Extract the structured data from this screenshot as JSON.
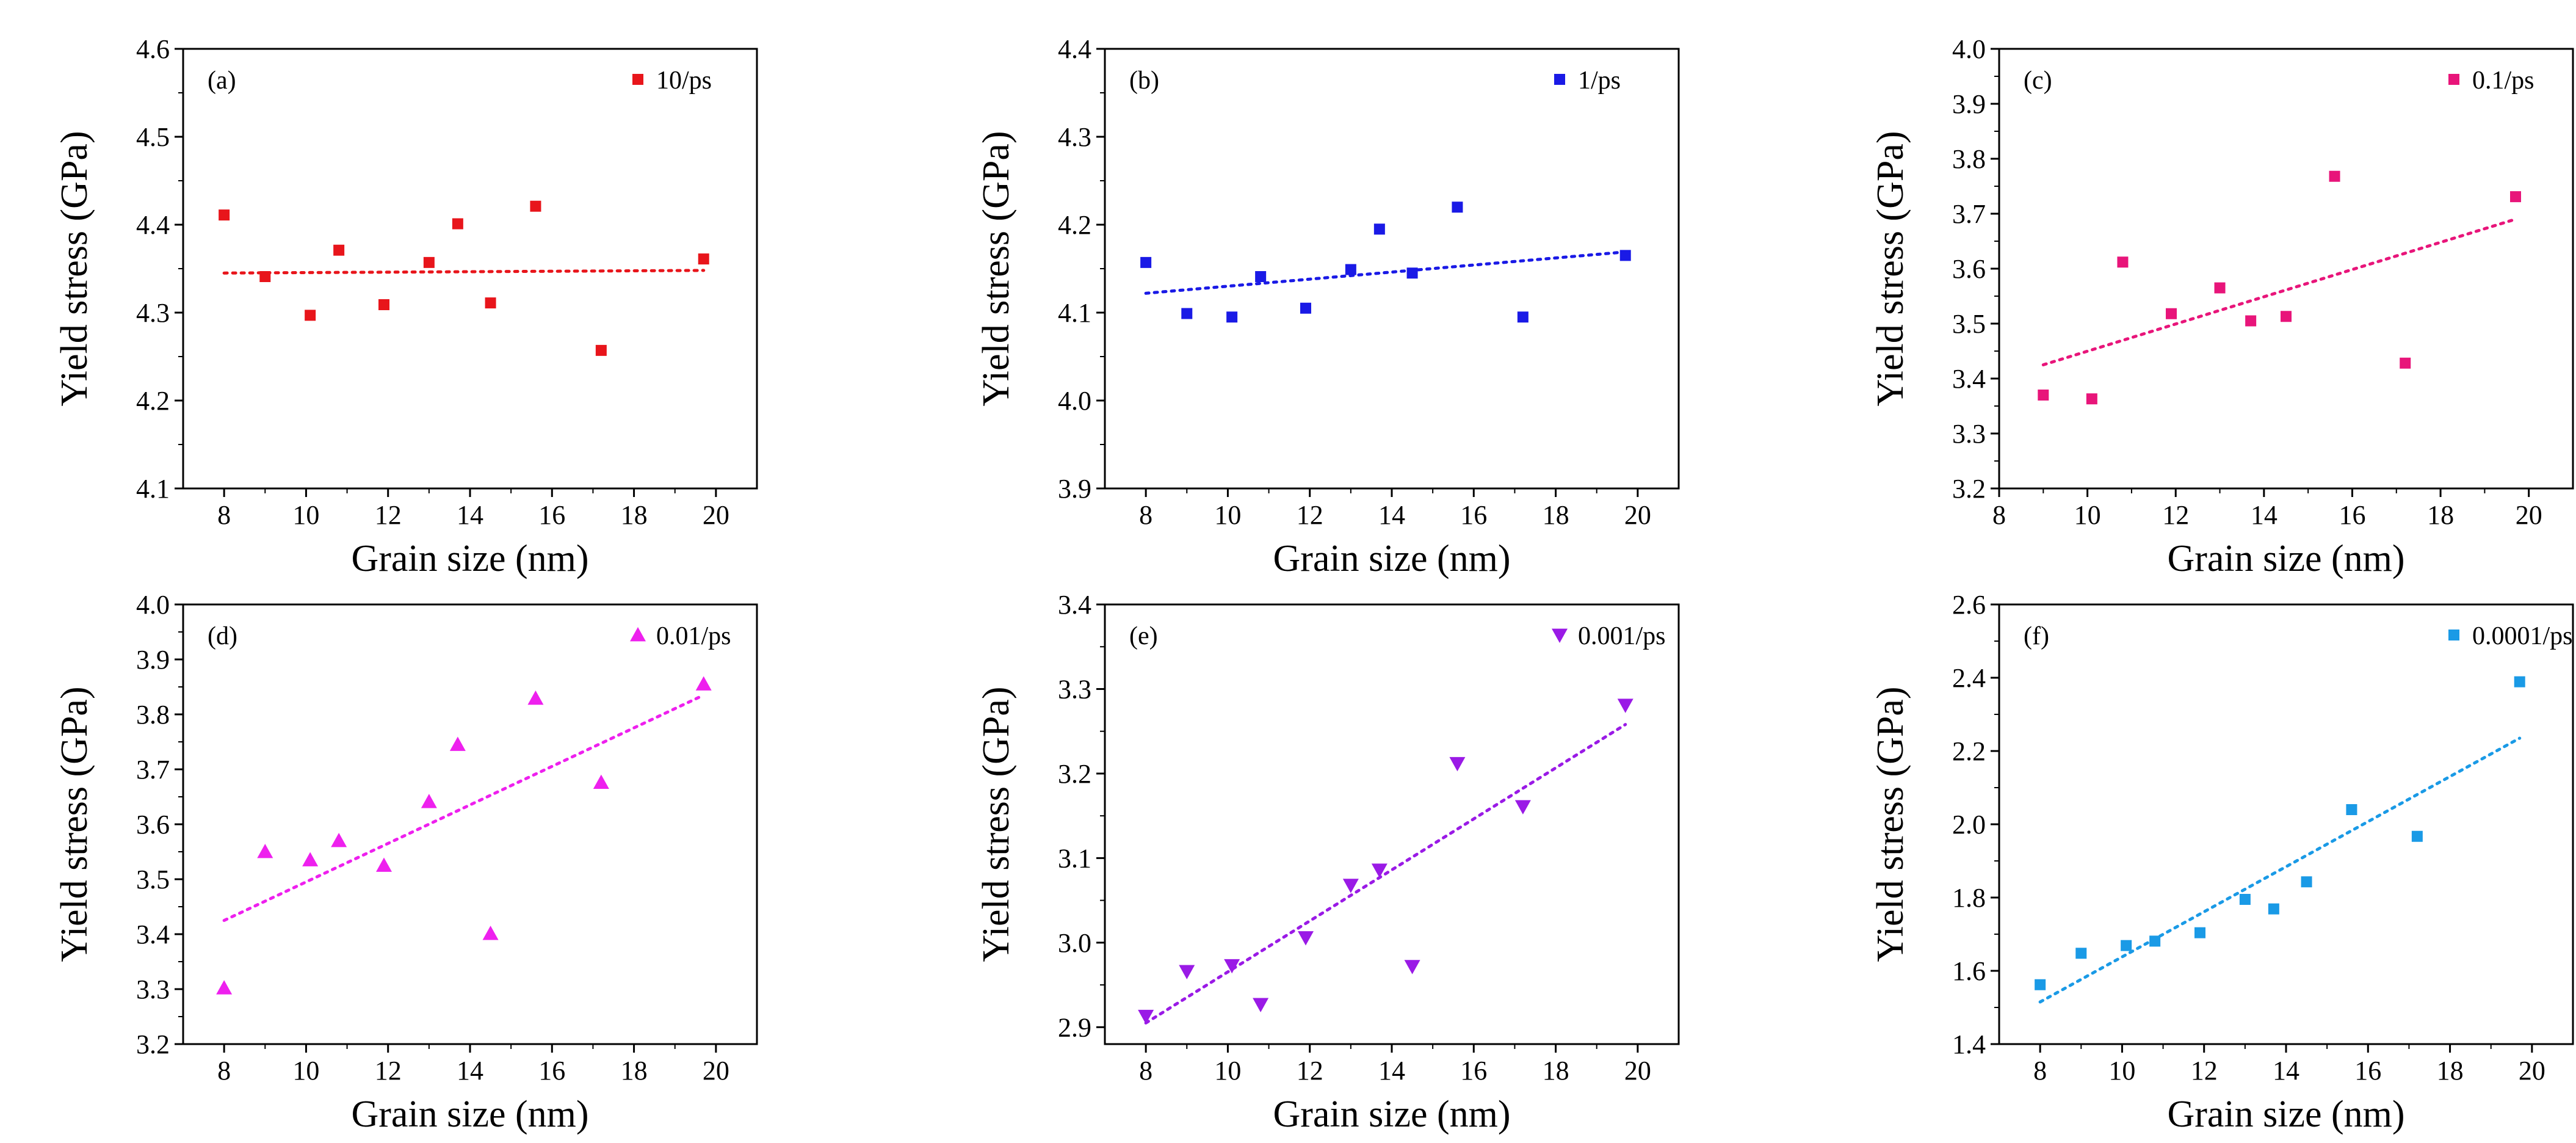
{
  "figure": {
    "background": "#ffffff"
  },
  "chart_data": [
    {
      "type": "scatter",
      "panel": "(a)",
      "xlabel": "Grain size (nm)",
      "ylabel": "Yield stress (GPa)",
      "xlim": [
        7,
        21
      ],
      "ylim": [
        4.1,
        4.6
      ],
      "xticks": [
        8,
        10,
        12,
        14,
        16,
        18,
        20
      ],
      "yticks": [
        4.1,
        4.2,
        4.3,
        4.4,
        4.5,
        4.6
      ],
      "series": [
        {
          "name": "10/ps",
          "marker": "square",
          "color": "#e8151b",
          "x": [
            8.0,
            9.0,
            10.1,
            10.8,
            11.9,
            13.0,
            13.7,
            14.5,
            15.6,
            17.2,
            19.7
          ],
          "y": [
            4.411,
            4.341,
            4.297,
            4.371,
            4.309,
            4.357,
            4.401,
            4.311,
            4.421,
            4.257,
            4.361
          ],
          "fit": {
            "x": [
              8.0,
              19.7
            ],
            "y": [
              4.345,
              4.348
            ]
          }
        }
      ]
    },
    {
      "type": "scatter",
      "panel": "(b)",
      "xlabel": "Grain size (nm)",
      "ylabel": "Yield stress (GPa)",
      "xlim": [
        7,
        21
      ],
      "ylim": [
        3.9,
        4.4
      ],
      "xticks": [
        8,
        10,
        12,
        14,
        16,
        18,
        20
      ],
      "yticks": [
        3.9,
        4.0,
        4.1,
        4.2,
        4.3,
        4.4
      ],
      "series": [
        {
          "name": "1/ps",
          "marker": "square",
          "color": "#1a1ae6",
          "x": [
            8.0,
            9.0,
            10.1,
            10.8,
            11.9,
            13.0,
            13.7,
            14.5,
            15.6,
            17.2,
            19.7
          ],
          "y": [
            4.157,
            4.099,
            4.095,
            4.141,
            4.105,
            4.149,
            4.195,
            4.145,
            4.22,
            4.095,
            4.165
          ],
          "fit": {
            "x": [
              8.0,
              19.7
            ],
            "y": [
              4.122,
              4.169
            ]
          }
        }
      ]
    },
    {
      "type": "scatter",
      "panel": "(c)",
      "xlabel": "Grain size (nm)",
      "ylabel": "Yield stress (GPa)",
      "xlim": [
        8,
        21
      ],
      "ylim": [
        3.2,
        4.0
      ],
      "xticks": [
        8,
        10,
        12,
        14,
        16,
        18,
        20
      ],
      "yticks": [
        3.2,
        3.3,
        3.4,
        3.5,
        3.6,
        3.7,
        3.8,
        3.9,
        4.0
      ],
      "series": [
        {
          "name": "0.1/ps",
          "marker": "square",
          "color": "#e8157a",
          "x": [
            9.0,
            10.1,
            10.8,
            11.9,
            13.0,
            13.7,
            14.5,
            15.6,
            17.2,
            19.7
          ],
          "y": [
            3.37,
            3.363,
            3.612,
            3.518,
            3.565,
            3.505,
            3.513,
            3.768,
            3.428,
            3.731
          ],
          "fit": {
            "x": [
              9.0,
              19.7
            ],
            "y": [
              3.425,
              3.69
            ]
          }
        }
      ]
    },
    {
      "type": "scatter",
      "panel": "(d)",
      "xlabel": "Grain size (nm)",
      "ylabel": "Yield stress (GPa)",
      "xlim": [
        7,
        21
      ],
      "ylim": [
        3.2,
        4.0
      ],
      "xticks": [
        8,
        10,
        12,
        14,
        16,
        18,
        20
      ],
      "yticks": [
        3.2,
        3.3,
        3.4,
        3.5,
        3.6,
        3.7,
        3.8,
        3.9,
        4.0
      ],
      "series": [
        {
          "name": "0.01/ps",
          "marker": "triangle-up",
          "color": "#ee20ee",
          "x": [
            8.0,
            9.0,
            10.1,
            10.8,
            11.9,
            13.0,
            13.7,
            14.5,
            15.6,
            17.2,
            19.7
          ],
          "y": [
            3.302,
            3.55,
            3.535,
            3.57,
            3.525,
            3.641,
            3.745,
            3.401,
            3.829,
            3.676,
            3.855
          ],
          "fit": {
            "x": [
              8.0,
              19.7
            ],
            "y": [
              3.425,
              3.835
            ]
          }
        }
      ]
    },
    {
      "type": "scatter",
      "panel": "(e)",
      "xlabel": "Grain size (nm)",
      "ylabel": "Yield stress (GPa)",
      "xlim": [
        7,
        21
      ],
      "ylim": [
        2.88,
        3.4
      ],
      "xticks": [
        8,
        10,
        12,
        14,
        16,
        18,
        20
      ],
      "yticks": [
        2.9,
        3.0,
        3.1,
        3.2,
        3.3,
        3.4
      ],
      "series": [
        {
          "name": "0.001/ps",
          "marker": "triangle-down",
          "color": "#9a1ae6",
          "x": [
            8.0,
            9.0,
            10.1,
            10.8,
            11.9,
            13.0,
            13.7,
            14.5,
            15.6,
            17.2,
            19.7
          ],
          "y": [
            2.913,
            2.966,
            2.973,
            2.927,
            3.006,
            3.068,
            3.086,
            2.972,
            3.212,
            3.161,
            3.281
          ],
          "fit": {
            "x": [
              8.0,
              19.7
            ],
            "y": [
              2.905,
              3.258
            ]
          }
        }
      ]
    },
    {
      "type": "scatter",
      "panel": "(f)",
      "xlabel": "Grain size (nm)",
      "ylabel": "Yield stress (GPa)",
      "xlim": [
        7,
        21
      ],
      "ylim": [
        1.4,
        2.6
      ],
      "xticks": [
        8,
        10,
        12,
        14,
        16,
        18,
        20
      ],
      "yticks": [
        1.4,
        1.6,
        1.8,
        2.0,
        2.2,
        2.4,
        2.6
      ],
      "series": [
        {
          "name": "0.0001/ps",
          "marker": "square",
          "color": "#1a9ae6",
          "x": [
            8.0,
            9.0,
            10.1,
            10.8,
            11.9,
            13.0,
            13.7,
            14.5,
            15.6,
            17.2,
            19.7
          ],
          "y": [
            1.562,
            1.648,
            1.669,
            1.681,
            1.704,
            1.795,
            1.769,
            1.843,
            2.04,
            1.967,
            2.389
          ],
          "fit": {
            "x": [
              8.0,
              19.7
            ],
            "y": [
              1.515,
              2.235
            ]
          }
        }
      ]
    }
  ]
}
